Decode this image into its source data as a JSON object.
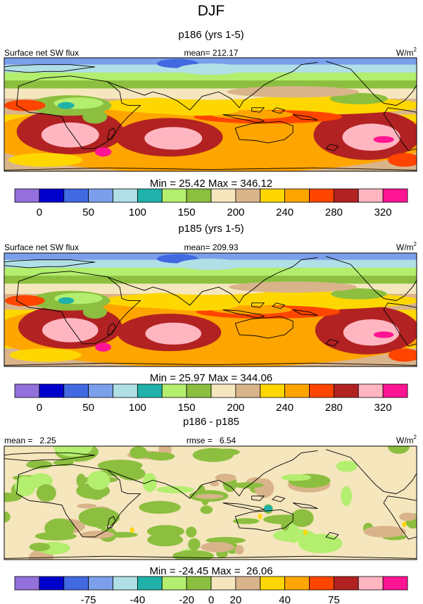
{
  "title": "DJF",
  "colors": {
    "palette": [
      "#9370DB",
      "#0000CD",
      "#4169E1",
      "#7B9FEA",
      "#B0DFE6",
      "#20B2AA",
      "#B3EE6E",
      "#8CBF3F",
      "#F5E6BE",
      "#D9B48B",
      "#FFD700",
      "#FFA500",
      "#FF4500",
      "#B22222",
      "#FFB6C1",
      "#FF1493"
    ],
    "land_outline": "#000000"
  },
  "chart_data": [
    {
      "type": "heatmap",
      "map_type": "global lat-lon contour map",
      "title": "p186 (yrs 1-5)",
      "left_label": "Surface net SW flux",
      "center_label": "mean= 212.17",
      "units_base": "W/m",
      "units_exp": "2",
      "min_max_label": "Min =  25.42 Max = 346.12",
      "min": 25.42,
      "max": 346.12,
      "colorbar_ticks": [
        "0",
        "50",
        "100",
        "150",
        "200",
        "240",
        "280",
        "320"
      ]
    },
    {
      "type": "heatmap",
      "map_type": "global lat-lon contour map",
      "title": "p185 (yrs 1-5)",
      "left_label": "Surface net SW flux",
      "center_label": "mean= 209.93",
      "units_base": "W/m",
      "units_exp": "2",
      "min_max_label": "Min =  25.97 Max = 344.06",
      "min": 25.97,
      "max": 344.06,
      "colorbar_ticks": [
        "0",
        "50",
        "100",
        "150",
        "200",
        "240",
        "280",
        "320"
      ]
    },
    {
      "type": "heatmap",
      "map_type": "global lat-lon contour map (difference)",
      "title": "p186 - p185",
      "left_label": "mean =   2.25",
      "center_label": "rmse =   6.54",
      "units_base": "W/m",
      "units_exp": "2",
      "min_max_label": "Min = -24.45 Max =  26.06",
      "min": -24.45,
      "max": 26.06,
      "colorbar_ticks": [
        "-75",
        "-40",
        "-20",
        "0",
        "20",
        "40",
        "75"
      ]
    }
  ]
}
